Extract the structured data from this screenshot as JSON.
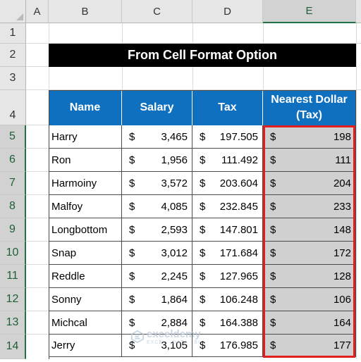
{
  "columns": [
    "A",
    "B",
    "C",
    "D",
    "E"
  ],
  "rows": [
    "1",
    "2",
    "3",
    "4",
    "5",
    "6",
    "7",
    "8",
    "9",
    "10",
    "11",
    "12",
    "13",
    "14"
  ],
  "title": "From Cell Format Option",
  "headers": {
    "name": "Name",
    "salary": "Salary",
    "tax": "Tax",
    "nearest": "Nearest Dollar (Tax)"
  },
  "currency": "$",
  "records": [
    {
      "name": "Harry",
      "salary": "3,465",
      "tax": "197.505",
      "nearest": "198"
    },
    {
      "name": "Ron",
      "salary": "1,956",
      "tax": "111.492",
      "nearest": "111"
    },
    {
      "name": "Harmoiny",
      "salary": "3,572",
      "tax": "203.604",
      "nearest": "204"
    },
    {
      "name": "Malfoy",
      "salary": "4,085",
      "tax": "232.845",
      "nearest": "233"
    },
    {
      "name": "Longbottom",
      "salary": "2,593",
      "tax": "147.801",
      "nearest": "148"
    },
    {
      "name": "Snap",
      "salary": "3,012",
      "tax": "171.684",
      "nearest": "172"
    },
    {
      "name": "Reddle",
      "salary": "2,245",
      "tax": "127.965",
      "nearest": "128"
    },
    {
      "name": "Sonny",
      "salary": "1,864",
      "tax": "106.248",
      "nearest": "106"
    },
    {
      "name": "Michcal",
      "salary": "2,884",
      "tax": "164.388",
      "nearest": "164"
    },
    {
      "name": "Jerry",
      "salary": "3,105",
      "tax": "176.985",
      "nearest": "177"
    }
  ],
  "watermark": {
    "name": "exceldemy",
    "tagline": "EXCEL · DATA · BI"
  },
  "colors": {
    "header_blue": "#0f70c0",
    "title_black": "#000000",
    "highlight_red": "#e02020",
    "selected_fill": "#d0d0d0",
    "excel_green": "#217346"
  }
}
